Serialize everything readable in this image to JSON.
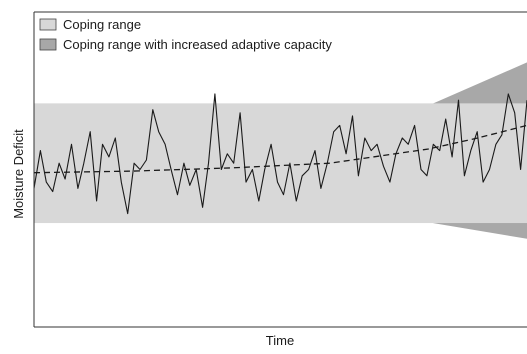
{
  "chart_data": {
    "type": "line",
    "title": "",
    "xlabel": "Time",
    "ylabel": "Moisture Deficit",
    "grid": false,
    "legend_placement": "top-left",
    "legend": [
      {
        "label": "Coping range",
        "color": "#d8d8d8"
      },
      {
        "label": "Coping range with increased adaptive capacity",
        "color": "#a8a8a8"
      }
    ],
    "xlim": [
      0,
      100
    ],
    "ylim": [
      0,
      100
    ],
    "coping_range": {
      "x": [
        0,
        100
      ],
      "low": 33,
      "high": 71
    },
    "adaptive_capacity_range": {
      "x": [
        81,
        100
      ],
      "low": [
        33,
        28
      ],
      "high": [
        71,
        84
      ]
    },
    "series": [
      {
        "style": "solid",
        "color": "#1a1a1a",
        "x": [
          0,
          1.3,
          2.5,
          3.8,
          5.1,
          6.3,
          7.6,
          8.9,
          10.1,
          11.4,
          12.7,
          13.9,
          15.2,
          16.5,
          17.7,
          19,
          20.3,
          21.5,
          22.8,
          24.1,
          25.3,
          26.6,
          27.8,
          29.1,
          30.4,
          31.6,
          32.9,
          34.2,
          35.4,
          36.7,
          38,
          39.2,
          40.5,
          41.8,
          43,
          44.3,
          45.6,
          46.8,
          48.1,
          49.4,
          50.6,
          51.9,
          53.2,
          54.4,
          55.7,
          57,
          58.2,
          59.5,
          60.8,
          62,
          63.3,
          64.6,
          65.8,
          67.1,
          68.4,
          69.6,
          70.9,
          72.2,
          73.4,
          74.7,
          75.9,
          77.2,
          78.5,
          79.7,
          81,
          82.3,
          83.5,
          84.8,
          86.1,
          87.3,
          88.6,
          89.9,
          91.1,
          92.4,
          93.7,
          94.9,
          96.2,
          97.5,
          98.7,
          100
        ],
        "y": [
          44,
          56,
          46,
          43,
          52,
          47,
          58,
          44,
          52,
          62,
          40,
          58,
          54,
          60,
          46,
          36,
          52,
          50,
          53,
          69,
          62,
          58,
          50,
          42,
          52,
          45,
          50,
          38,
          52,
          74,
          50,
          55,
          52,
          68,
          46,
          50,
          40,
          50,
          58,
          46,
          42,
          52,
          40,
          48,
          50,
          56,
          44,
          52,
          62,
          64,
          55,
          67,
          48,
          60,
          56,
          58,
          51,
          46,
          55,
          60,
          58,
          64,
          50,
          48,
          58,
          56,
          66,
          54,
          72,
          48,
          56,
          62,
          46,
          50,
          58,
          61,
          74,
          68,
          50,
          72
        ]
      },
      {
        "style": "dashed",
        "color": "#1a1a1a",
        "x": [
          0,
          20,
          40,
          60,
          80,
          90,
          100
        ],
        "y": [
          49,
          49.5,
          50.5,
          52,
          56.5,
          60,
          64
        ]
      }
    ]
  }
}
